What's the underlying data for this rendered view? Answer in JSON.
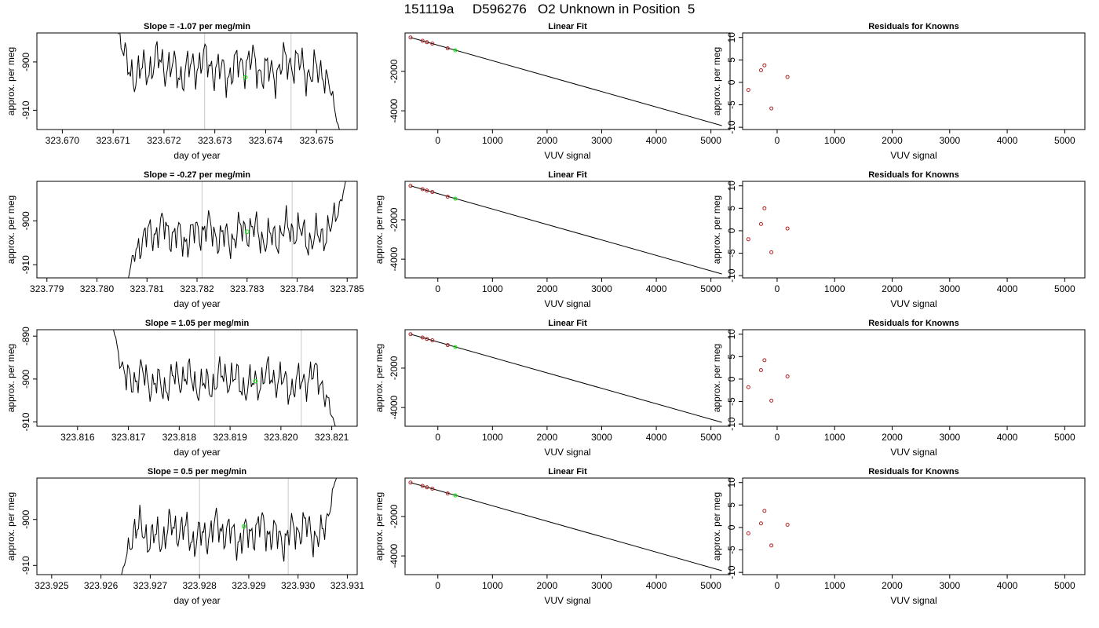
{
  "page_title": "151119a     D596276   O2 Unknown in Position  5",
  "chart_data": [
    {
      "type": "line",
      "title": "Slope =  -1.07  per meg/min",
      "xlabel": "day of year",
      "ylabel": "approx. per meg",
      "xlim": [
        323.6695,
        323.6758
      ],
      "ylim": [
        -914,
        -894
      ],
      "x_ticks": [
        "323.670",
        "323.671",
        "323.672",
        "323.673",
        "323.674",
        "323.675"
      ],
      "y_ticks": [
        "-900",
        "-910"
      ],
      "y_tick_values": [
        -900,
        -910
      ],
      "vlines": [
        323.6728,
        323.6745
      ],
      "line_start": 323.671,
      "line_end": 323.67545,
      "marker": {
        "x": 323.6736,
        "y": -903.2
      },
      "seed": 1.3,
      "y_start": -889,
      "y_end": -914,
      "y_level": -901.2
    },
    {
      "type": "line",
      "title": "Linear Fit",
      "xlabel": "VUV signal",
      "ylabel": "",
      "xlim": [
        -600,
        5350
      ],
      "ylim": [
        -4950,
        -50
      ],
      "x_ticks": [
        "0",
        "1000",
        "2000",
        "3000",
        "4000",
        "5000"
      ],
      "y_ticks": [
        "-2000",
        "-4000"
      ],
      "y_tick_values": [
        -2000,
        -4000
      ],
      "fit_line": {
        "x0": -500,
        "y0": -280,
        "x1": 5200,
        "y1": -4750
      },
      "knowns": [
        {
          "x": -500,
          "y": -280
        },
        {
          "x": -280,
          "y": -450
        },
        {
          "x": -200,
          "y": -520
        },
        {
          "x": -100,
          "y": -590
        },
        {
          "x": 180,
          "y": -830
        }
      ],
      "unknown": {
        "x": 320,
        "y": -930
      }
    },
    {
      "type": "scatter",
      "title": "Residuals for Knowns",
      "xlabel": "VUV signal",
      "ylabel": "approx. per meg",
      "xlim": [
        -600,
        5350
      ],
      "ylim": [
        -10.5,
        11
      ],
      "x_ticks": [
        "0",
        "1000",
        "2000",
        "3000",
        "4000",
        "5000"
      ],
      "y_ticks": [
        "10",
        "5",
        "0",
        "-5",
        "-10"
      ],
      "y_tick_values": [
        10,
        5,
        0,
        -5,
        -10
      ],
      "points": [
        {
          "x": -500,
          "y": -1.7
        },
        {
          "x": -280,
          "y": 2.7
        },
        {
          "x": -220,
          "y": 3.8
        },
        {
          "x": -100,
          "y": -5.8
        },
        {
          "x": 180,
          "y": 1.2
        }
      ]
    },
    {
      "type": "line",
      "title": "Slope =  -0.27  per meg/min",
      "xlabel": "day of year",
      "ylabel": "approx. per meg",
      "xlim": [
        323.7788,
        323.7852
      ],
      "ylim": [
        -913,
        -891
      ],
      "x_ticks": [
        "323.779",
        "323.780",
        "323.781",
        "323.782",
        "323.783",
        "323.784",
        "323.785"
      ],
      "y_ticks": [
        "-900",
        "-910"
      ],
      "y_tick_values": [
        -900,
        -910
      ],
      "vlines": [
        323.7821,
        323.7839
      ],
      "line_start": 323.7806,
      "line_end": 323.785,
      "marker": {
        "x": 323.783,
        "y": -902.5
      },
      "seed": 2.7,
      "y_start": -914,
      "y_end": -890,
      "y_level": -903.0
    },
    {
      "type": "line",
      "title": "Linear Fit",
      "xlabel": "VUV signal",
      "ylabel": "approx. per meg",
      "xlim": [
        -600,
        5350
      ],
      "ylim": [
        -4950,
        -50
      ],
      "x_ticks": [
        "0",
        "1000",
        "2000",
        "3000",
        "4000",
        "5000"
      ],
      "y_ticks": [
        "-2000",
        "-4000"
      ],
      "y_tick_values": [
        -2000,
        -4000
      ],
      "fit_line": {
        "x0": -500,
        "y0": -280,
        "x1": 5200,
        "y1": -4750
      },
      "knowns": [
        {
          "x": -500,
          "y": -280
        },
        {
          "x": -280,
          "y": -450
        },
        {
          "x": -200,
          "y": -520
        },
        {
          "x": -100,
          "y": -590
        },
        {
          "x": 180,
          "y": -830
        }
      ],
      "unknown": {
        "x": 320,
        "y": -930
      }
    },
    {
      "type": "scatter",
      "title": "Residuals for Knowns",
      "xlabel": "VUV signal",
      "ylabel": "approx. per meg",
      "xlim": [
        -600,
        5350
      ],
      "ylim": [
        -10.5,
        11
      ],
      "x_ticks": [
        "0",
        "1000",
        "2000",
        "3000",
        "4000",
        "5000"
      ],
      "y_ticks": [
        "10",
        "5",
        "0",
        "-5",
        "-10"
      ],
      "y_tick_values": [
        10,
        5,
        0,
        -5,
        -10
      ],
      "points": [
        {
          "x": -500,
          "y": -1.9
        },
        {
          "x": -280,
          "y": 1.5
        },
        {
          "x": -220,
          "y": 5.0
        },
        {
          "x": -100,
          "y": -4.8
        },
        {
          "x": 180,
          "y": 0.5
        }
      ]
    },
    {
      "type": "line",
      "title": "Slope =  1.05  per meg/min",
      "xlabel": "day of year",
      "ylabel": "approx. per meg",
      "xlim": [
        323.8152,
        323.8215
      ],
      "ylim": [
        -911,
        -888.5
      ],
      "x_ticks": [
        "323.816",
        "323.817",
        "323.818",
        "323.819",
        "323.820",
        "323.821"
      ],
      "y_ticks": [
        "-890",
        "-900",
        "-910"
      ],
      "y_tick_values": [
        -890,
        -900,
        -910
      ],
      "vlines": [
        323.8187,
        323.8204
      ],
      "line_start": 323.8167,
      "line_end": 323.8211,
      "marker": {
        "x": 323.8195,
        "y": -900.5
      },
      "seed": 4.1,
      "y_start": -888,
      "y_end": -912,
      "y_level": -900.5
    },
    {
      "type": "line",
      "title": "Linear Fit",
      "xlabel": "VUV signal",
      "ylabel": "approx. per meg",
      "xlim": [
        -600,
        5350
      ],
      "ylim": [
        -4950,
        -50
      ],
      "x_ticks": [
        "0",
        "1000",
        "2000",
        "3000",
        "4000",
        "5000"
      ],
      "y_ticks": [
        "-2000",
        "-4000"
      ],
      "y_tick_values": [
        -2000,
        -4000
      ],
      "fit_line": {
        "x0": -500,
        "y0": -280,
        "x1": 5200,
        "y1": -4750
      },
      "knowns": [
        {
          "x": -500,
          "y": -280
        },
        {
          "x": -280,
          "y": -450
        },
        {
          "x": -200,
          "y": -520
        },
        {
          "x": -100,
          "y": -590
        },
        {
          "x": 180,
          "y": -830
        }
      ],
      "unknown": {
        "x": 320,
        "y": -930
      }
    },
    {
      "type": "scatter",
      "title": "Residuals for Knowns",
      "xlabel": "VUV signal",
      "ylabel": "approx. per meg",
      "xlim": [
        -600,
        5350
      ],
      "ylim": [
        -10.5,
        11
      ],
      "x_ticks": [
        "0",
        "1000",
        "2000",
        "3000",
        "4000",
        "5000"
      ],
      "y_ticks": [
        "10",
        "5",
        "0",
        "-5",
        "-10"
      ],
      "y_tick_values": [
        10,
        5,
        0,
        -5,
        -10
      ],
      "points": [
        {
          "x": -500,
          "y": -1.8
        },
        {
          "x": -280,
          "y": 2.0
        },
        {
          "x": -220,
          "y": 4.2
        },
        {
          "x": -100,
          "y": -4.8
        },
        {
          "x": 180,
          "y": 0.6
        }
      ]
    },
    {
      "type": "line",
      "title": "Slope =  0.5  per meg/min",
      "xlabel": "day of year",
      "ylabel": "approx. per meg",
      "xlim": [
        323.9247,
        323.9312
      ],
      "ylim": [
        -912,
        -891
      ],
      "x_ticks": [
        "323.925",
        "323.926",
        "323.927",
        "323.928",
        "323.929",
        "323.930",
        "323.931"
      ],
      "y_ticks": [
        "-900",
        "-910"
      ],
      "y_tick_values": [
        -900,
        -910
      ],
      "vlines": [
        323.928,
        323.9298
      ],
      "line_start": 323.9264,
      "line_end": 323.9308,
      "marker": {
        "x": 323.9289,
        "y": -901.5
      },
      "seed": 5.9,
      "y_start": -913,
      "y_end": -890,
      "y_level": -903.0
    },
    {
      "type": "line",
      "title": "Linear Fit",
      "xlabel": "VUV signal",
      "ylabel": "approx. per meg",
      "xlim": [
        -600,
        5350
      ],
      "ylim": [
        -4950,
        -50
      ],
      "x_ticks": [
        "0",
        "1000",
        "2000",
        "3000",
        "4000",
        "5000"
      ],
      "y_ticks": [
        "-2000",
        "-4000"
      ],
      "y_tick_values": [
        -2000,
        -4000
      ],
      "fit_line": {
        "x0": -500,
        "y0": -280,
        "x1": 5200,
        "y1": -4750
      },
      "knowns": [
        {
          "x": -500,
          "y": -280
        },
        {
          "x": -280,
          "y": -450
        },
        {
          "x": -200,
          "y": -520
        },
        {
          "x": -100,
          "y": -590
        },
        {
          "x": 180,
          "y": -830
        }
      ],
      "unknown": {
        "x": 320,
        "y": -930
      }
    },
    {
      "type": "scatter",
      "title": "Residuals for Knowns",
      "xlabel": "VUV signal",
      "ylabel": "approx. per meg",
      "xlim": [
        -600,
        5350
      ],
      "ylim": [
        -10.5,
        11
      ],
      "x_ticks": [
        "0",
        "1000",
        "2000",
        "3000",
        "4000",
        "5000"
      ],
      "y_ticks": [
        "10",
        "5",
        "0",
        "-5",
        "-10"
      ],
      "y_tick_values": [
        10,
        5,
        0,
        -5,
        -10
      ],
      "points": [
        {
          "x": -500,
          "y": -1.3
        },
        {
          "x": -280,
          "y": 0.9
        },
        {
          "x": -220,
          "y": 3.7
        },
        {
          "x": -100,
          "y": -4.0
        },
        {
          "x": 180,
          "y": 0.6
        }
      ]
    }
  ],
  "colors": {
    "trace": "#000000",
    "vline": "#c8c8c8",
    "unknown": "#00ee00",
    "known": "#b22222",
    "frame": "#000000"
  }
}
